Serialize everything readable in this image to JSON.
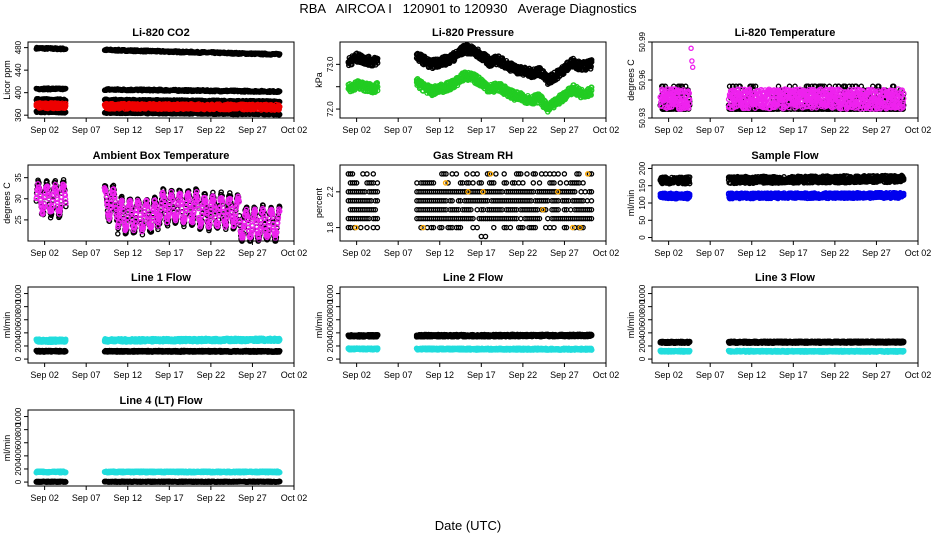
{
  "page": {
    "title": "RBA   AIRCOA I   120901 to 120930   Average Diagnostics",
    "xlabel": "Date (UTC)"
  },
  "chart_data": [
    {
      "type": "scatter",
      "title": "Li-820 CO2",
      "ylabel": "Licor ppm",
      "xlim": [
        -1,
        31
      ],
      "ylim": [
        355,
        490
      ],
      "yticks": [
        360,
        400,
        440,
        480
      ],
      "xtick_values": [
        1,
        6,
        11,
        16,
        21,
        26,
        31
      ],
      "xtick_labels": [
        "Sep 02",
        "Sep 07",
        "Sep 12",
        "Sep 17",
        "Sep 22",
        "Sep 27",
        "Oct 02"
      ],
      "gaps": [
        [
          3.6,
          8.2
        ]
      ],
      "series": [
        {
          "color": "#000000",
          "kind": "level",
          "x": [
            0,
            29.3
          ],
          "y": [
            479,
            468
          ],
          "jitter": 1.5
        },
        {
          "color": "#000000",
          "kind": "level",
          "x": [
            0,
            29.3
          ],
          "y": [
            407,
            402
          ],
          "jitter": 1.5
        },
        {
          "color": "#000000",
          "kind": "level",
          "x": [
            0,
            29.3
          ],
          "y": [
            388,
            384
          ],
          "jitter": 1.5
        },
        {
          "color": "#000000",
          "kind": "level",
          "x": [
            0,
            29.3
          ],
          "y": [
            366,
            362
          ],
          "jitter": 1.5
        },
        {
          "color": "#ee0000",
          "kind": "band",
          "x": [
            0,
            29.3
          ],
          "y": [
            377,
            374
          ],
          "jitter": 5
        }
      ]
    },
    {
      "type": "scatter",
      "title": "Li-820 Pressure",
      "ylabel": "kPa",
      "xlim": [
        -1,
        31
      ],
      "ylim": [
        71.8,
        73.5
      ],
      "yticks": [
        72.0,
        72.5,
        73.0
      ],
      "ytick_labels": [
        "72.0",
        "",
        "73.0"
      ],
      "xtick_values": [
        1,
        6,
        11,
        16,
        21,
        26,
        31
      ],
      "xtick_labels": [
        "Sep 02",
        "Sep 07",
        "Sep 12",
        "Sep 17",
        "Sep 22",
        "Sep 27",
        "Oct 02"
      ],
      "gaps": [
        [
          3.6,
          8.2
        ]
      ],
      "series": [
        {
          "color": "#000000",
          "kind": "path",
          "x": [
            0,
            1,
            2,
            3,
            3.6,
            8.2,
            9,
            10,
            11,
            12,
            13,
            14,
            15,
            16,
            17,
            18,
            19,
            20,
            21,
            22,
            23,
            24,
            25,
            26,
            27,
            28,
            29.3
          ],
          "y": [
            73.05,
            73.15,
            73.1,
            73.05,
            73.1,
            73.2,
            73.1,
            73.0,
            73.05,
            73.1,
            73.2,
            73.35,
            73.3,
            73.2,
            73.05,
            73.1,
            73.0,
            72.9,
            72.85,
            72.8,
            72.85,
            72.65,
            72.75,
            72.9,
            73.05,
            72.95,
            73.0
          ],
          "jitter": 0.1
        },
        {
          "color": "#22cc22",
          "kind": "path",
          "x": [
            0,
            1,
            2,
            3,
            3.6,
            8.2,
            9,
            10,
            11,
            12,
            13,
            14,
            15,
            16,
            17,
            18,
            19,
            20,
            21,
            22,
            23,
            24,
            25,
            26,
            27,
            28,
            29.3
          ],
          "y": [
            72.45,
            72.55,
            72.5,
            72.45,
            72.5,
            72.6,
            72.5,
            72.4,
            72.45,
            72.5,
            72.6,
            72.75,
            72.7,
            72.6,
            72.45,
            72.5,
            72.4,
            72.3,
            72.25,
            72.2,
            72.25,
            72.0,
            72.15,
            72.3,
            72.45,
            72.35,
            72.4
          ],
          "jitter": 0.1
        }
      ]
    },
    {
      "type": "scatter",
      "title": "Li-820 Temperature",
      "ylabel": "degrees C",
      "xlim": [
        -1,
        31
      ],
      "ylim": [
        50.93,
        50.99
      ],
      "yticks": [
        50.93,
        50.96,
        50.99
      ],
      "ytick_labels": [
        "50.93",
        "50.96",
        "50.99"
      ],
      "xtick_values": [
        1,
        6,
        11,
        16,
        21,
        26,
        31
      ],
      "xtick_labels": [
        "Sep 02",
        "Sep 07",
        "Sep 12",
        "Sep 17",
        "Sep 22",
        "Sep 27",
        "Oct 02"
      ],
      "gaps": [
        [
          3.6,
          8.2
        ]
      ],
      "series": [
        {
          "color": "#000000",
          "kind": "steps",
          "x": [
            0,
            29.3
          ],
          "levels": [
            50.937,
            50.94,
            50.943,
            50.946,
            50.949,
            50.952,
            50.955
          ],
          "flat_from": 12,
          "flat_to": 14
        },
        {
          "color": "#ee22ee",
          "kind": "band",
          "x": [
            0,
            29.3
          ],
          "y": [
            50.945,
            50.945
          ],
          "jitter": 0.008
        },
        {
          "color": "#ee22ee",
          "kind": "spike",
          "x": [
            3.7,
            3.8,
            3.9
          ],
          "y": [
            50.985,
            50.975,
            50.97
          ]
        }
      ]
    },
    {
      "type": "scatter",
      "title": "Ambient Box Temperature",
      "ylabel": "degrees C",
      "xlim": [
        -1,
        31
      ],
      "ylim": [
        20,
        38
      ],
      "yticks": [
        25,
        30,
        35
      ],
      "xtick_values": [
        1,
        6,
        11,
        16,
        21,
        26,
        31
      ],
      "xtick_labels": [
        "Sep 02",
        "Sep 07",
        "Sep 12",
        "Sep 17",
        "Sep 22",
        "Sep 27",
        "Oct 02"
      ],
      "gaps": [
        [
          3.6,
          8.2
        ]
      ],
      "series": [
        {
          "color": "#000000",
          "kind": "diurnal",
          "x": [
            0,
            29.3
          ],
          "base": [
            30,
            29,
            26,
            28,
            27,
            24
          ],
          "amp": 4
        },
        {
          "color": "#ee22ee",
          "kind": "diurnal",
          "x": [
            0,
            29.3
          ],
          "base": [
            30,
            29,
            26,
            28,
            27,
            24
          ],
          "amp": 3.2
        }
      ]
    },
    {
      "type": "scatter",
      "title": "Gas Stream RH",
      "ylabel": "percent",
      "xlim": [
        -1,
        31
      ],
      "ylim": [
        1.65,
        2.5
      ],
      "yticks": [
        1.8,
        2.2
      ],
      "ytick_labels": [
        "1.8",
        "2.2"
      ],
      "xtick_values": [
        1,
        6,
        11,
        16,
        21,
        26,
        31
      ],
      "xtick_labels": [
        "Sep 02",
        "Sep 07",
        "Sep 12",
        "Sep 17",
        "Sep 22",
        "Sep 27",
        "Oct 02"
      ],
      "gaps": [
        [
          3.6,
          8.2
        ]
      ],
      "series": [
        {
          "color": "#000000",
          "kind": "rhgrid",
          "x": [
            0,
            29.3
          ],
          "levels": [
            1.8,
            1.9,
            2.0,
            2.1,
            2.2,
            2.3,
            2.4
          ]
        },
        {
          "color": "#ffaa00",
          "kind": "rhsparse",
          "x": [
            0,
            29.3
          ],
          "levels": [
            1.8,
            2.0,
            2.2,
            2.3,
            2.4
          ]
        }
      ]
    },
    {
      "type": "scatter",
      "title": "Sample Flow",
      "ylabel": "ml/min",
      "xlim": [
        -1,
        31
      ],
      "ylim": [
        -10,
        210
      ],
      "yticks": [
        0,
        50,
        100,
        150,
        200
      ],
      "xtick_values": [
        1,
        6,
        11,
        16,
        21,
        26,
        31
      ],
      "xtick_labels": [
        "Sep 02",
        "Sep 07",
        "Sep 12",
        "Sep 17",
        "Sep 22",
        "Sep 27",
        "Oct 02"
      ],
      "gaps": [
        [
          3.6,
          8.2
        ]
      ],
      "series": [
        {
          "color": "#000000",
          "kind": "band",
          "x": [
            0,
            29.3
          ],
          "y": [
            165,
            170
          ],
          "jitter": 10
        },
        {
          "color": "#0000ee",
          "kind": "band",
          "x": [
            0,
            29.3
          ],
          "y": [
            120,
            122
          ],
          "jitter": 8
        }
      ]
    },
    {
      "type": "scatter",
      "title": "Line 1 Flow",
      "ylabel": "ml/min",
      "xlim": [
        -1,
        31
      ],
      "ylim": [
        -60,
        1100
      ],
      "yticks": [
        0,
        200,
        400,
        600,
        800,
        1000
      ],
      "xtick_values": [
        1,
        6,
        11,
        16,
        21,
        26,
        31
      ],
      "xtick_labels": [
        "Sep 02",
        "Sep 07",
        "Sep 12",
        "Sep 17",
        "Sep 22",
        "Sep 27",
        "Oct 02"
      ],
      "gaps": [
        [
          3.6,
          8.2
        ]
      ],
      "series": [
        {
          "color": "#22dddd",
          "kind": "band",
          "x": [
            0,
            29.3
          ],
          "y": [
            280,
            295
          ],
          "jitter": 25
        },
        {
          "color": "#000000",
          "kind": "band",
          "x": [
            0,
            29.3
          ],
          "y": [
            120,
            118
          ],
          "jitter": 12
        }
      ]
    },
    {
      "type": "scatter",
      "title": "Line 2 Flow",
      "ylabel": "ml/min",
      "xlim": [
        -1,
        31
      ],
      "ylim": [
        -60,
        1100
      ],
      "yticks": [
        0,
        200,
        400,
        600,
        800,
        1000
      ],
      "xtick_values": [
        1,
        6,
        11,
        16,
        21,
        26,
        31
      ],
      "xtick_labels": [
        "Sep 02",
        "Sep 07",
        "Sep 12",
        "Sep 17",
        "Sep 22",
        "Sep 27",
        "Oct 02"
      ],
      "gaps": [
        [
          3.6,
          8.2
        ]
      ],
      "series": [
        {
          "color": "#000000",
          "kind": "band",
          "x": [
            0,
            29.3
          ],
          "y": [
            355,
            360
          ],
          "jitter": 18
        },
        {
          "color": "#22dddd",
          "kind": "band",
          "x": [
            0,
            29.3
          ],
          "y": [
            155,
            150
          ],
          "jitter": 14
        }
      ]
    },
    {
      "type": "scatter",
      "title": "Line 3 Flow",
      "ylabel": "ml/min",
      "xlim": [
        -1,
        31
      ],
      "ylim": [
        -60,
        1100
      ],
      "yticks": [
        0,
        200,
        400,
        600,
        800,
        1000
      ],
      "xtick_values": [
        1,
        6,
        11,
        16,
        21,
        26,
        31
      ],
      "xtick_labels": [
        "Sep 02",
        "Sep 07",
        "Sep 12",
        "Sep 17",
        "Sep 22",
        "Sep 27",
        "Oct 02"
      ],
      "gaps": [
        [
          3.6,
          8.2
        ]
      ],
      "series": [
        {
          "color": "#000000",
          "kind": "band",
          "x": [
            0,
            29.3
          ],
          "y": [
            255,
            260
          ],
          "jitter": 15
        },
        {
          "color": "#22dddd",
          "kind": "band",
          "x": [
            0,
            29.3
          ],
          "y": [
            120,
            118
          ],
          "jitter": 12
        }
      ]
    },
    {
      "type": "scatter",
      "title": "Line 4 (LT) Flow",
      "ylabel": "ml/min",
      "xlim": [
        -1,
        31
      ],
      "ylim": [
        -60,
        1100
      ],
      "yticks": [
        0,
        200,
        400,
        600,
        800,
        1000
      ],
      "xtick_values": [
        1,
        6,
        11,
        16,
        21,
        26,
        31
      ],
      "xtick_labels": [
        "Sep 02",
        "Sep 07",
        "Sep 12",
        "Sep 17",
        "Sep 22",
        "Sep 27",
        "Oct 02"
      ],
      "gaps": [
        [
          3.6,
          8.2
        ]
      ],
      "series": [
        {
          "color": "#22dddd",
          "kind": "band",
          "x": [
            0,
            29.3
          ],
          "y": [
            155,
            155
          ],
          "jitter": 12
        },
        {
          "color": "#000000",
          "kind": "band",
          "x": [
            0,
            29.3
          ],
          "y": [
            5,
            5
          ],
          "jitter": 6
        }
      ]
    }
  ]
}
